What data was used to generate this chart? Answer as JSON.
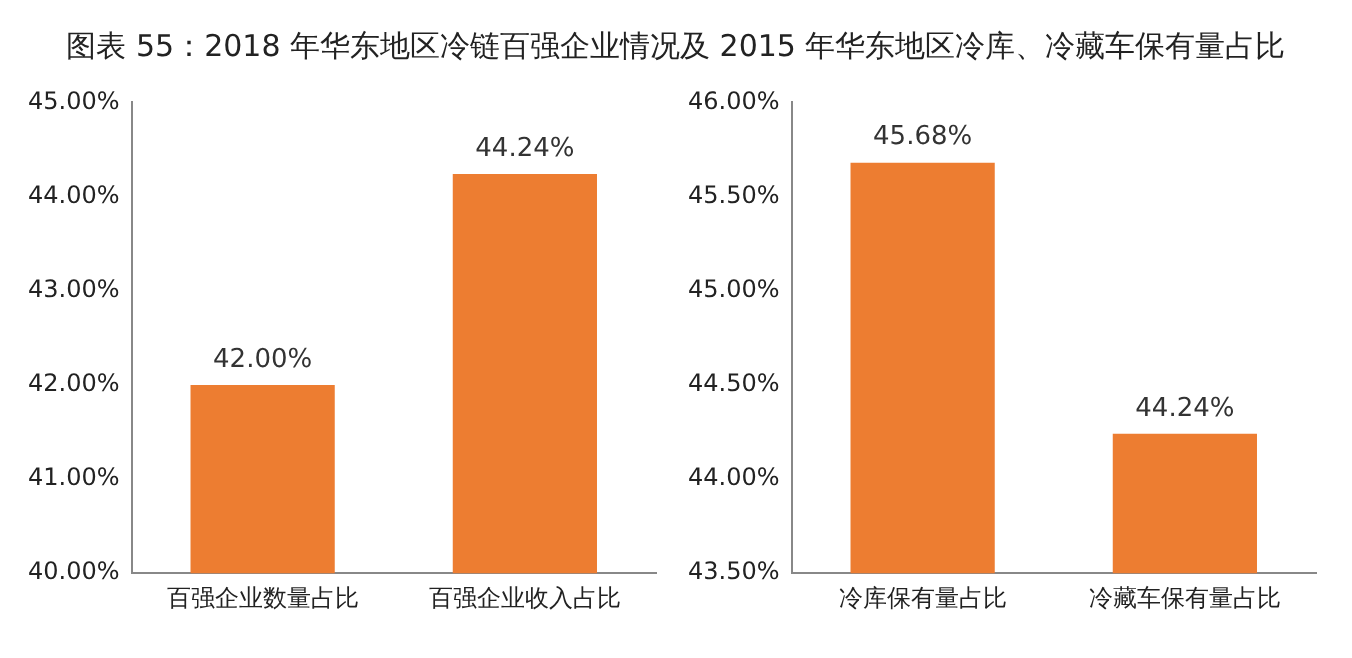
{
  "chart_data": [
    {
      "type": "bar",
      "title": "图表 55：2018 年华东地区冷链百强企业情况及 2015 年华东地区冷库、冷藏车保有量占比",
      "categories": [
        "百强企业数量占比",
        "百强企业收入占比"
      ],
      "values": [
        42.0,
        44.24
      ],
      "value_labels": [
        "42.00%",
        "44.24%"
      ],
      "color": "#ed7d31",
      "ylim": [
        40,
        45
      ],
      "yticks": [
        {
          "value": 40,
          "label": "40.00%"
        },
        {
          "value": 41,
          "label": "41.00%"
        },
        {
          "value": 42,
          "label": "42.00%"
        },
        {
          "value": 43,
          "label": "43.00%"
        },
        {
          "value": 44,
          "label": "44.00%"
        },
        {
          "value": 45,
          "label": "45.00%"
        }
      ]
    },
    {
      "type": "bar",
      "categories": [
        "冷库保有量占比",
        "冷藏车保有量占比"
      ],
      "values": [
        45.68,
        44.24
      ],
      "value_labels": [
        "45.68%",
        "44.24%"
      ],
      "color": "#ed7d31",
      "ylim": [
        43.5,
        46
      ],
      "yticks": [
        {
          "value": 43.5,
          "label": "43.50%"
        },
        {
          "value": 44,
          "label": "44.00%"
        },
        {
          "value": 44.5,
          "label": "44.50%"
        },
        {
          "value": 45,
          "label": "45.00%"
        },
        {
          "value": 45.5,
          "label": "45.50%"
        },
        {
          "value": 46,
          "label": "46.00%"
        }
      ]
    }
  ]
}
